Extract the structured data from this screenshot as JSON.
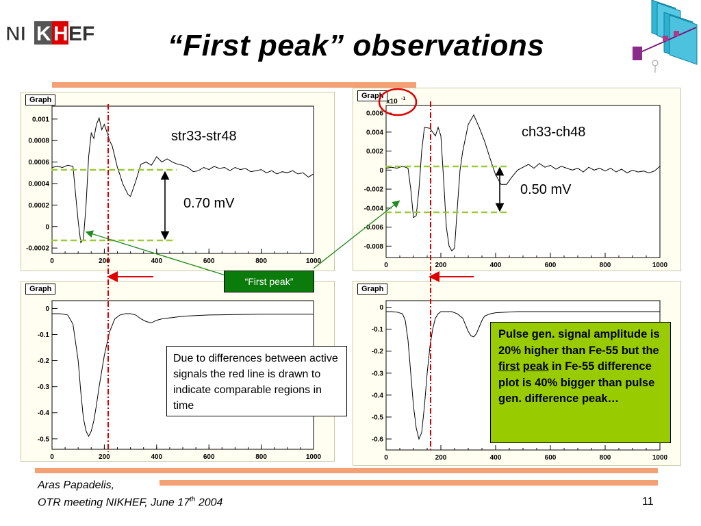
{
  "slide": {
    "title": "“First peak” observations",
    "logo_text": [
      "NI",
      "K",
      "H",
      "EF"
    ],
    "page_number": "11",
    "footer_author": "Aras Papadelis,",
    "footer_meeting_prefix": "OTR meeting NIKHEF, June 17",
    "footer_meeting_sup": "th",
    "footer_meeting_suffix": " 2004",
    "accent_color": "#f4a075"
  },
  "annotations": {
    "top_left_label": "str33-str48",
    "top_left_amplitude": "0.70 mV",
    "top_right_label": "ch33-ch48",
    "top_right_amplitude": "0.50 mV",
    "first_peak_label": "“First peak”",
    "note_text": "Due to differences between active signals the red line is drawn to indicate comparable regions in time",
    "green_box": {
      "part1": "Pulse gen. signal amplitude is 20% higher than Fe-55 but the ",
      "first_word": "first",
      "space": " ",
      "peak_word": "peak",
      "part2": " in Fe-55 difference plot is 40% bigger than pulse gen. difference peak…"
    },
    "colors": {
      "reference_line": "#dd0000",
      "level_line": "#99cc33",
      "arrow_green": "#228b22",
      "first_peak_box": "#0b7b0b",
      "note_box_green": "#99cc00"
    }
  },
  "chart_data": [
    {
      "type": "line",
      "graph_label": "Graph",
      "x_ticks": [
        "0",
        "200",
        "400",
        "600",
        "800",
        "1000"
      ],
      "y_ticks": [
        "-0.0002",
        "0",
        "0.0002",
        "0.0004",
        "0.0006",
        "0.0008",
        "0.001"
      ],
      "xlim": [
        0,
        1000
      ],
      "ylim": [
        -0.00025,
        0.00112
      ],
      "series": [
        {
          "x": [
            0,
            20,
            40,
            60,
            80,
            90,
            100,
            110,
            120,
            130,
            140,
            150,
            160,
            170,
            180,
            190,
            200,
            210,
            220,
            230,
            240,
            250,
            260,
            270,
            280,
            290,
            300,
            320,
            340,
            360,
            380,
            400,
            420,
            440,
            460,
            480,
            500,
            520,
            540,
            560,
            580,
            600,
            620,
            640,
            660,
            680,
            700,
            720,
            740,
            760,
            780,
            800,
            820,
            840,
            860,
            880,
            900,
            920,
            940,
            960,
            980,
            1000
          ],
          "y": [
            0.00055,
            0.00056,
            0.00055,
            0.00057,
            0.00056,
            0.0003,
            5e-05,
            -0.00015,
            -0.00012,
            0.0002,
            0.00065,
            0.00087,
            0.00082,
            0.00095,
            0.00101,
            0.0009,
            0.00095,
            0.00088,
            0.0008,
            0.00075,
            0.00065,
            0.00055,
            0.00048,
            0.0004,
            0.00035,
            0.0003,
            0.00028,
            0.00042,
            0.00058,
            0.0006,
            0.00057,
            0.00065,
            0.0006,
            0.00063,
            0.0006,
            0.00058,
            0.00057,
            0.00055,
            0.00051,
            0.00052,
            0.00055,
            0.00053,
            0.00056,
            0.00054,
            0.00055,
            0.00052,
            0.00055,
            0.00053,
            0.00054,
            0.00051,
            0.00052,
            0.00053,
            0.0005,
            0.00052,
            0.00049,
            0.00051,
            0.0005,
            0.00052,
            0.00049,
            0.0005,
            0.00046,
            0.00049
          ]
        }
      ],
      "reference_x": 250,
      "levels": [
        0.00055,
        -0.00015
      ]
    },
    {
      "type": "line",
      "graph_label": "Graph",
      "multiplier_label": "x10",
      "multiplier_exp": "-1",
      "x_ticks": [
        "0",
        "200",
        "400",
        "600",
        "800",
        "1000"
      ],
      "y_ticks": [
        "-0.008",
        "-0.006",
        "-0.004",
        "-0.002",
        "0",
        "0.002",
        "0.004",
        "0.006"
      ],
      "xlim": [
        0,
        1000
      ],
      "ylim": [
        -0.0092,
        0.0068
      ],
      "series": [
        {
          "x": [
            0,
            20,
            40,
            60,
            80,
            90,
            100,
            110,
            120,
            130,
            140,
            160,
            180,
            190,
            200,
            210,
            220,
            230,
            240,
            250,
            260,
            270,
            280,
            300,
            320,
            340,
            360,
            380,
            400,
            420,
            440,
            460,
            480,
            500,
            520,
            540,
            560,
            580,
            600,
            620,
            640,
            660,
            680,
            700,
            720,
            740,
            760,
            780,
            800,
            820,
            840,
            860,
            880,
            900,
            920,
            940,
            960,
            980,
            1000
          ],
          "y": [
            0.0002,
            0.0003,
            0.0002,
            0.0004,
            0.0002,
            -0.002,
            -0.005,
            -0.0048,
            -0.002,
            0.002,
            0.0045,
            0.0044,
            0.0036,
            0.0045,
            0.0036,
            -0.001,
            -0.006,
            -0.008,
            -0.0085,
            -0.0082,
            -0.004,
            0.0,
            0.002,
            0.0048,
            0.0058,
            0.0045,
            0.003,
            0.0012,
            -0.0005,
            -0.0015,
            -0.0015,
            -0.0007,
            0.0,
            0.0003,
            0.0006,
            0.0002,
            0.0007,
            0.0003,
            0.0005,
            0.0001,
            0.0004,
            0.0002,
            0.0,
            0.0002,
            -0.0002,
            0.0003,
            0.0,
            0.0002,
            -0.0001,
            0.0002,
            -0.0002,
            0.0001,
            -0.0003,
            0.0,
            -0.0002,
            -0.0001,
            -0.0003,
            -0.0001,
            0.0004
          ]
        }
      ],
      "reference_x": 200,
      "levels": [
        0.0003,
        -0.005
      ]
    },
    {
      "type": "line",
      "graph_label": "Graph",
      "x_ticks": [
        "0",
        "200",
        "400",
        "600",
        "800",
        "1000"
      ],
      "y_ticks": [
        "-0.5",
        "-0.4",
        "-0.3",
        "-0.2",
        "-0.1",
        "0"
      ],
      "xlim": [
        0,
        1000
      ],
      "ylim": [
        -0.54,
        0.03
      ],
      "series": [
        {
          "x": [
            0,
            20,
            40,
            60,
            80,
            100,
            110,
            120,
            130,
            140,
            150,
            160,
            170,
            180,
            200,
            220,
            240,
            260,
            280,
            300,
            320,
            340,
            360,
            380,
            400,
            420,
            440,
            460,
            500,
            550,
            600,
            650,
            700,
            800,
            900,
            1000
          ],
          "y": [
            -0.02,
            -0.02,
            -0.021,
            -0.025,
            -0.06,
            -0.2,
            -0.32,
            -0.42,
            -0.47,
            -0.49,
            -0.47,
            -0.43,
            -0.37,
            -0.3,
            -0.18,
            -0.09,
            -0.04,
            -0.025,
            -0.02,
            -0.02,
            -0.025,
            -0.04,
            -0.05,
            -0.055,
            -0.045,
            -0.04,
            -0.037,
            -0.035,
            -0.03,
            -0.027,
            -0.025,
            -0.024,
            -0.023,
            -0.022,
            -0.022,
            -0.022
          ]
        }
      ],
      "reference_x": 250
    },
    {
      "type": "line",
      "graph_label": "Graph",
      "x_ticks": [
        "0",
        "200",
        "400",
        "600",
        "800",
        "1000"
      ],
      "y_ticks": [
        "-0.6",
        "-0.5",
        "-0.4",
        "-0.3",
        "-0.2",
        "-0.1",
        "0"
      ],
      "xlim": [
        0,
        1000
      ],
      "ylim": [
        -0.65,
        0.03
      ],
      "series": [
        {
          "x": [
            0,
            20,
            40,
            60,
            70,
            80,
            90,
            100,
            110,
            120,
            130,
            140,
            150,
            160,
            170,
            180,
            190,
            200,
            220,
            240,
            260,
            280,
            290,
            300,
            310,
            320,
            330,
            340,
            350,
            360,
            380,
            400,
            440,
            480,
            500,
            600,
            700,
            800,
            900,
            1000
          ],
          "y": [
            -0.02,
            -0.02,
            -0.022,
            -0.03,
            -0.06,
            -0.15,
            -0.3,
            -0.45,
            -0.55,
            -0.6,
            -0.57,
            -0.45,
            -0.3,
            -0.18,
            -0.1,
            -0.05,
            -0.03,
            -0.02,
            -0.02,
            -0.02,
            -0.03,
            -0.05,
            -0.08,
            -0.11,
            -0.13,
            -0.135,
            -0.12,
            -0.09,
            -0.06,
            -0.04,
            -0.03,
            -0.025,
            -0.022,
            -0.02,
            -0.02,
            -0.02,
            -0.02,
            -0.02,
            -0.02,
            -0.02
          ]
        }
      ],
      "reference_x": 200
    }
  ]
}
